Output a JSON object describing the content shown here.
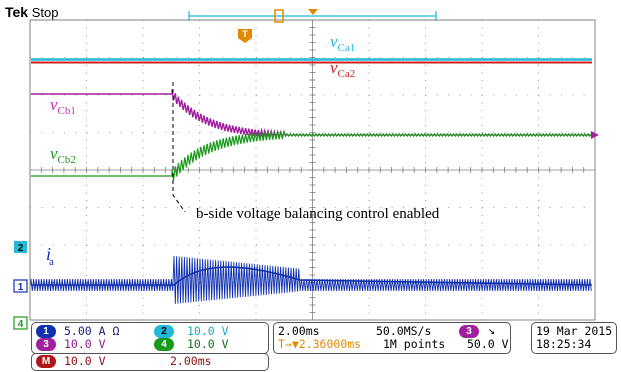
{
  "header": {
    "brand": "Tek",
    "run_state": "Stop"
  },
  "trigger": {
    "marker": "T"
  },
  "labels": {
    "vca1_main": "v",
    "vca1_sub": "Ca1",
    "vca2_main": "v",
    "vca2_sub": "Ca2",
    "vcb1_main": "v",
    "vcb1_sub": "Cb1",
    "vcb2_main": "v",
    "vcb2_sub": "Cb2",
    "ia_main": "i",
    "ia_sub": "a",
    "annotation": "b-side voltage balancing control enabled"
  },
  "channel_markers": {
    "ch2": "2",
    "ch1": "1",
    "ch4": "4"
  },
  "readouts": {
    "ch1": {
      "num": "1",
      "value": "5.00 A",
      "unit": "Ω",
      "color": "#1030b0"
    },
    "ch2": {
      "num": "2",
      "value": "10.0 V",
      "color": "#22b8d8"
    },
    "ch3": {
      "num": "3",
      "value": "10.0 V",
      "color": "#a020a0"
    },
    "ch4": {
      "num": "4",
      "value": "10.0 V",
      "color": "#1a9a1a"
    },
    "math": {
      "num": "M",
      "value": "10.0 V",
      "time": "2.00ms",
      "color": "#b01818"
    },
    "timebase": {
      "scale": "2.00ms",
      "sample_rate": "50.0MS/s",
      "position": "2.36000ms",
      "record": "1M points"
    },
    "trigger": {
      "channel": "3",
      "slope": "↘",
      "level": "50.0 V"
    },
    "datetime": {
      "date": "19 Mar  2015",
      "time": "18:25:34"
    }
  },
  "colors": {
    "grid": "#808080",
    "vca1": "#22b8d8",
    "vca2": "#d02020",
    "vcb1": "#a020a0",
    "vcb2": "#1a9a1a",
    "ia": "#1030b0",
    "trigger": "#e08a00"
  }
}
